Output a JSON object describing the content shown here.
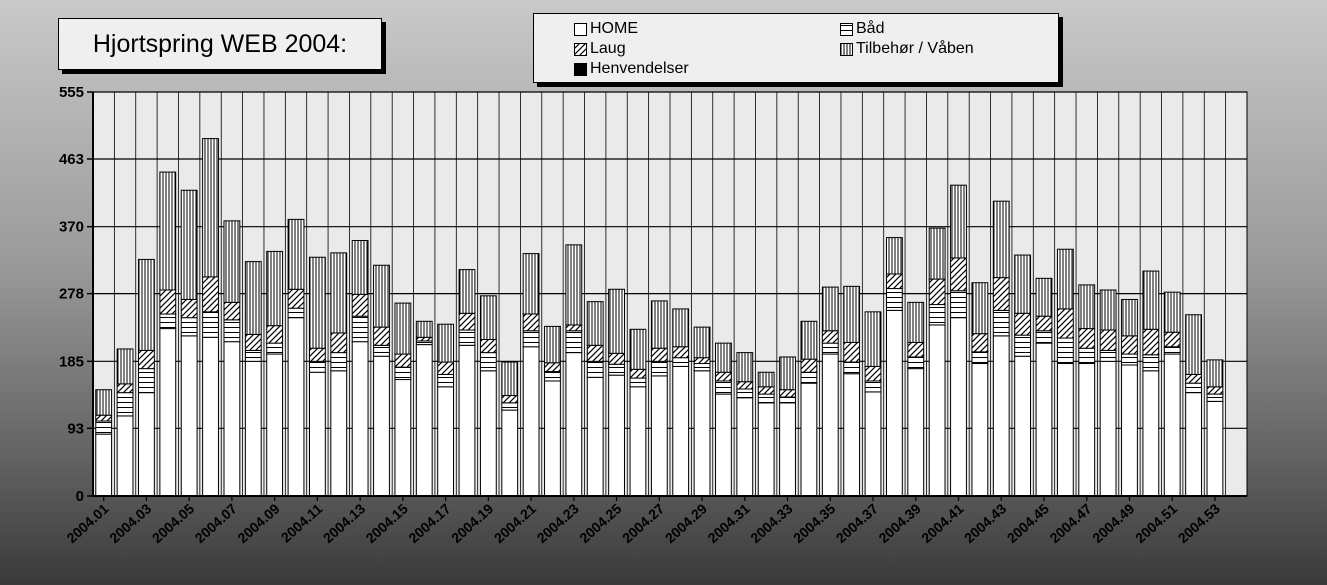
{
  "chart_data": {
    "type": "bar",
    "stacked": true,
    "title": "Hjortspring WEB 2004:",
    "xlabel": "",
    "ylabel": "",
    "ylim": [
      0,
      555
    ],
    "y_ticks": [
      0,
      93,
      185,
      278,
      370,
      463,
      555
    ],
    "grid": true,
    "legend_position": "top-center",
    "categories": [
      "2004.01",
      "2004.02",
      "2004.03",
      "2004.04",
      "2004.05",
      "2004.06",
      "2004.07",
      "2004.08",
      "2004.09",
      "2004.10",
      "2004.11",
      "2004.12",
      "2004.13",
      "2004.14",
      "2004.15",
      "2004.16",
      "2004.17",
      "2004.18",
      "2004.19",
      "2004.20",
      "2004.21",
      "2004.22",
      "2004.23",
      "2004.24",
      "2004.25",
      "2004.26",
      "2004.27",
      "2004.28",
      "2004.29",
      "2004.30",
      "2004.31",
      "2004.32",
      "2004.33",
      "2004.34",
      "2004.35",
      "2004.36",
      "2004.37",
      "2004.38",
      "2004.39",
      "2004.40",
      "2004.41",
      "2004.42",
      "2004.43",
      "2004.44",
      "2004.45",
      "2004.46",
      "2004.47",
      "2004.48",
      "2004.49",
      "2004.50",
      "2004.51",
      "2004.52",
      "2004.53",
      "2004.54"
    ],
    "x_tick_labels": [
      "2004.01",
      "2004.03",
      "2004.05",
      "2004.07",
      "2004.09",
      "2004.11",
      "2004.13",
      "2004.15",
      "2004.17",
      "2004.19",
      "2004.21",
      "2004.23",
      "2004.25",
      "2004.27",
      "2004.29",
      "2004.31",
      "2004.33",
      "2004.35",
      "2004.37",
      "2004.39",
      "2004.41",
      "2004.43",
      "2004.45",
      "2004.47",
      "2004.49",
      "2004.51",
      "2004.53"
    ],
    "series": [
      {
        "name": "HOME",
        "pattern": "white",
        "values": [
          85,
          110,
          142,
          230,
          220,
          218,
          212,
          185,
          195,
          245,
          170,
          172,
          212,
          192,
          160,
          208,
          150,
          207,
          172,
          118,
          205,
          158,
          197,
          163,
          166,
          150,
          165,
          178,
          172,
          140,
          135,
          128,
          128,
          155,
          195,
          168,
          143,
          255,
          175,
          235,
          245,
          182,
          220,
          192,
          210,
          182,
          182,
          185,
          180,
          172,
          195,
          142,
          130,
          0
        ]
      },
      {
        "name": "Båd",
        "pattern": "hbars",
        "values": [
          18,
          32,
          33,
          20,
          25,
          35,
          30,
          15,
          15,
          13,
          15,
          25,
          35,
          15,
          17,
          5,
          17,
          21,
          25,
          10,
          22,
          13,
          30,
          22,
          15,
          12,
          20,
          12,
          10,
          18,
          12,
          12,
          8,
          15,
          15,
          16,
          15,
          30,
          16,
          28,
          37,
          16,
          35,
          29,
          17,
          35,
          21,
          15,
          15,
          22,
          10,
          13,
          10,
          0
        ]
      },
      {
        "name": "Laug",
        "pattern": "diag",
        "values": [
          8,
          12,
          25,
          33,
          25,
          48,
          24,
          22,
          24,
          26,
          18,
          27,
          30,
          25,
          18,
          5,
          17,
          23,
          18,
          10,
          23,
          12,
          8,
          22,
          15,
          12,
          18,
          15,
          8,
          12,
          10,
          10,
          10,
          18,
          17,
          27,
          20,
          20,
          20,
          35,
          45,
          25,
          45,
          30,
          20,
          40,
          27,
          28,
          25,
          35,
          20,
          12,
          10,
          0
        ]
      },
      {
        "name": "Tilbehør / Våben",
        "pattern": "vbars",
        "values": [
          35,
          48,
          125,
          162,
          150,
          190,
          112,
          100,
          102,
          96,
          125,
          110,
          74,
          85,
          70,
          22,
          52,
          60,
          60,
          46,
          83,
          50,
          110,
          60,
          88,
          55,
          65,
          52,
          42,
          40,
          40,
          20,
          45,
          52,
          60,
          77,
          75,
          50,
          55,
          70,
          100,
          70,
          105,
          80,
          52,
          82,
          60,
          55,
          50,
          80,
          55,
          82,
          37,
          0
        ]
      },
      {
        "name": "Henvendelser",
        "pattern": "black",
        "values": [
          0,
          0,
          0,
          0,
          0,
          0,
          0,
          0,
          0,
          0,
          0,
          0,
          0,
          0,
          0,
          0,
          0,
          0,
          0,
          0,
          0,
          0,
          0,
          0,
          0,
          0,
          0,
          0,
          0,
          0,
          0,
          0,
          0,
          0,
          0,
          0,
          0,
          0,
          0,
          0,
          0,
          0,
          0,
          0,
          0,
          0,
          0,
          0,
          0,
          0,
          0,
          0,
          0,
          0
        ]
      }
    ]
  }
}
